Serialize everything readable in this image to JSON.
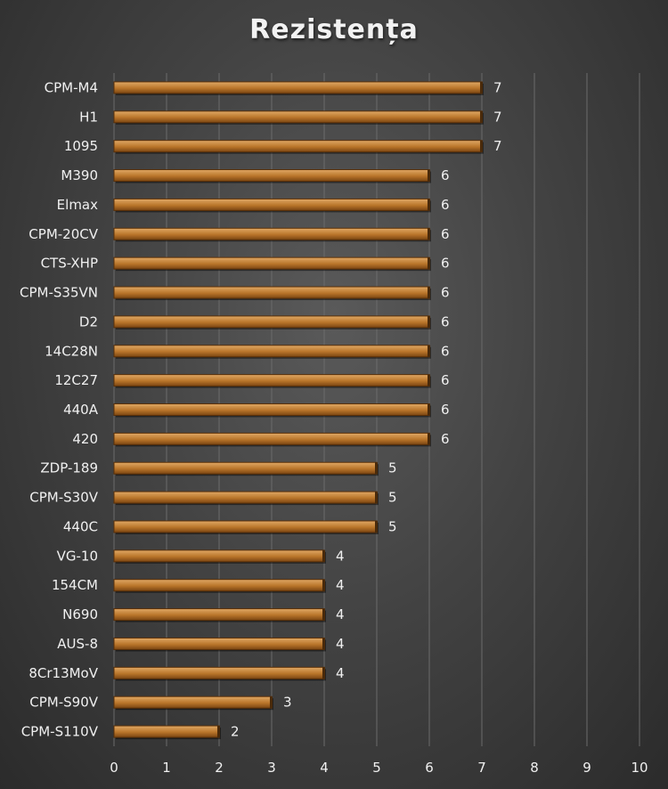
{
  "colors": {
    "bar_top": "#e0a865",
    "bar_mid": "#b9752a",
    "bar_bottom": "#7a4512",
    "grid": "#6b6b6b",
    "text": "#f0f0f0"
  },
  "chart_data": {
    "type": "bar",
    "orientation": "horizontal",
    "title": "Rezistența",
    "xlabel": "",
    "ylabel": "",
    "xlim": [
      0,
      10
    ],
    "xticks": [
      0,
      1,
      2,
      3,
      4,
      5,
      6,
      7,
      8,
      9,
      10
    ],
    "grid": true,
    "legend": "none",
    "categories": [
      "CPM-M4",
      "H1",
      "1095",
      "M390",
      "Elmax",
      "CPM-20CV",
      "CTS-XHP",
      "CPM-S35VN",
      "D2",
      "14C28N",
      "12C27",
      "440A",
      "420",
      "ZDP-189",
      "CPM-S30V",
      "440C",
      "VG-10",
      "154CM",
      "N690",
      "AUS-8",
      "8Cr13MoV",
      "CPM-S90V",
      "CPM-S110V"
    ],
    "values": [
      7,
      7,
      7,
      6,
      6,
      6,
      6,
      6,
      6,
      6,
      6,
      6,
      6,
      5,
      5,
      5,
      4,
      4,
      4,
      4,
      4,
      3,
      2
    ]
  }
}
